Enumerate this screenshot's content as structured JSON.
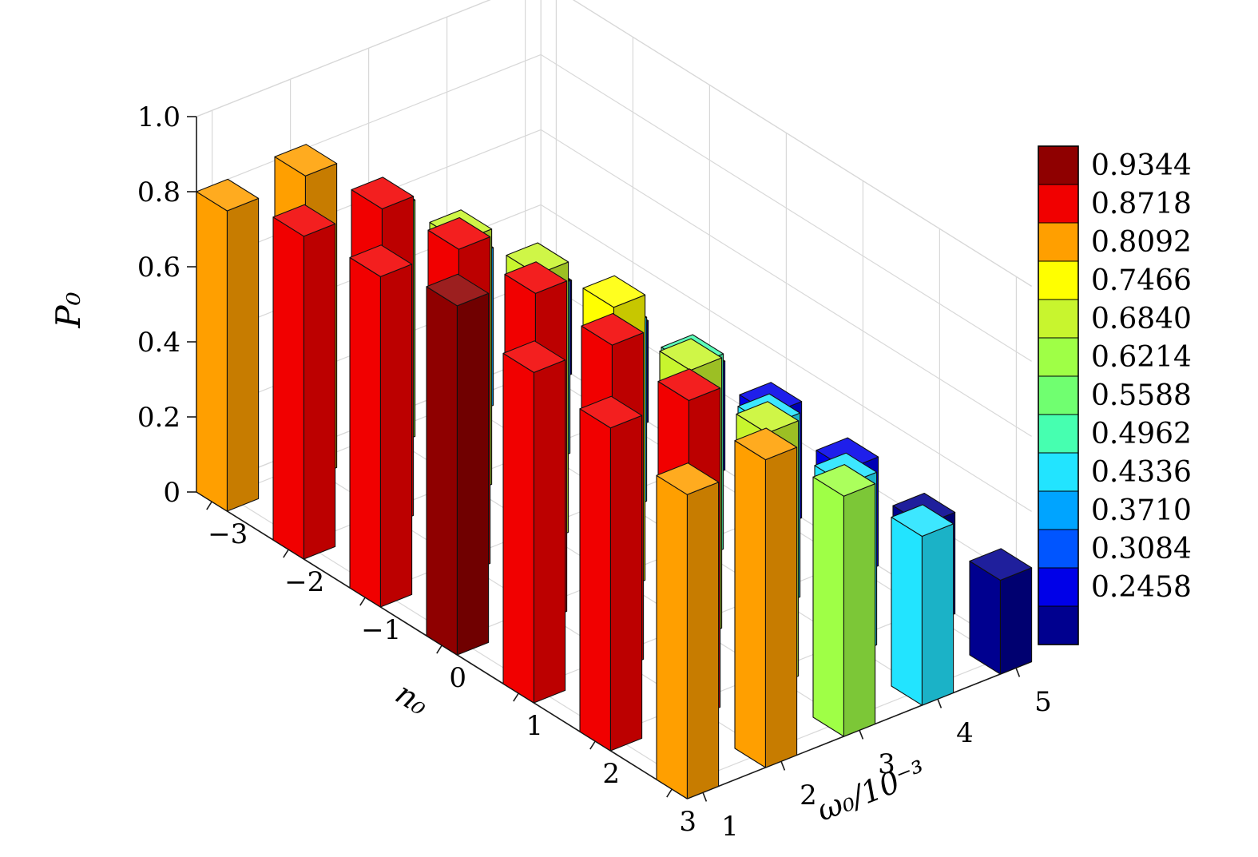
{
  "chart_data": {
    "type": "bar3d",
    "title": "",
    "xlabel": "n₀",
    "ylabel": "ω₀/10⁻³",
    "zlabel": "P₀",
    "x_ticks": [
      -3,
      -2,
      -1,
      0,
      1,
      2,
      3
    ],
    "x_tick_labels": [
      "−3",
      "−2",
      "−1",
      "0",
      "1",
      "2",
      "3"
    ],
    "y_ticks": [
      1,
      2,
      3,
      4,
      5
    ],
    "y_tick_labels": [
      "1",
      "2",
      "3",
      "4",
      "5"
    ],
    "z_ticks": [
      0,
      0.2,
      0.4,
      0.6,
      0.8,
      1.0
    ],
    "z_tick_labels": [
      "0",
      "0.2",
      "0.4",
      "0.6",
      "0.8",
      "1.0"
    ],
    "zlim": [
      0,
      1
    ],
    "grid": true,
    "series": [
      {
        "name": "ω₀/10⁻³ = 1",
        "values": [
          0.8,
          0.86,
          0.88,
          0.93,
          0.88,
          0.86,
          0.81
        ]
      },
      {
        "name": "ω₀/10⁻³ = 2",
        "values": [
          0.81,
          0.85,
          0.87,
          0.88,
          0.87,
          0.85,
          0.82
        ]
      },
      {
        "name": "ω₀/10⁻³ = 3",
        "values": [
          0.63,
          0.68,
          0.72,
          0.76,
          0.72,
          0.68,
          0.64
        ]
      },
      {
        "name": "ω₀/10⁻³ = 4",
        "values": [
          0.42,
          0.46,
          0.49,
          0.52,
          0.49,
          0.46,
          0.45
        ]
      },
      {
        "name": "ω₀/10⁻³ = 5",
        "values": [
          0.25,
          0.27,
          0.29,
          0.31,
          0.29,
          0.27,
          0.25
        ]
      }
    ],
    "colorbar": {
      "vmin": 0.2458,
      "vmax": 0.9344,
      "tick_labels": [
        "0.9344",
        "0.8718",
        "0.8092",
        "0.7466",
        "0.6840",
        "0.6214",
        "0.5588",
        "0.4962",
        "0.4336",
        "0.3710",
        "0.3084",
        "0.2458"
      ],
      "colors_top_to_bottom": [
        "#8f0000",
        "#f10000",
        "#ff9f00",
        "#ffff00",
        "#c8f52e",
        "#9fff46",
        "#70ff70",
        "#46ffb0",
        "#22e4ff",
        "#00a4ff",
        "#0055ff",
        "#0000e8",
        "#00008f"
      ]
    },
    "colors": {
      "axis": "#1a1a1a",
      "grid": "#d8d8d8",
      "bar_edge": "#111111",
      "background": "#ffffff"
    }
  }
}
